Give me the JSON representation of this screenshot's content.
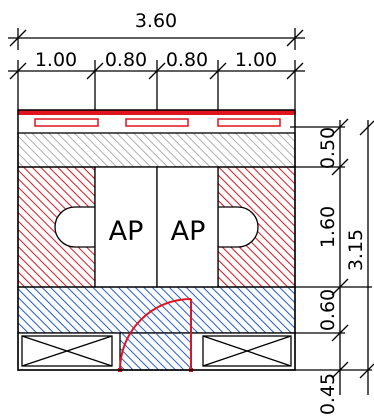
{
  "dimensions": {
    "overall_width": "3.60",
    "segment_widths": [
      "1.00",
      "0.80",
      "0.80",
      "1.00"
    ],
    "overall_height": "3.15",
    "segment_heights": [
      "0.50",
      "1.60",
      "0.60",
      "0.45"
    ]
  },
  "labels": {
    "ap_left": "AP",
    "ap_right": "AP"
  },
  "colors": {
    "line": "#000000",
    "red": "#e0141e",
    "blue": "#1f5cd8",
    "grey_hatch": "#b0b0b0"
  }
}
